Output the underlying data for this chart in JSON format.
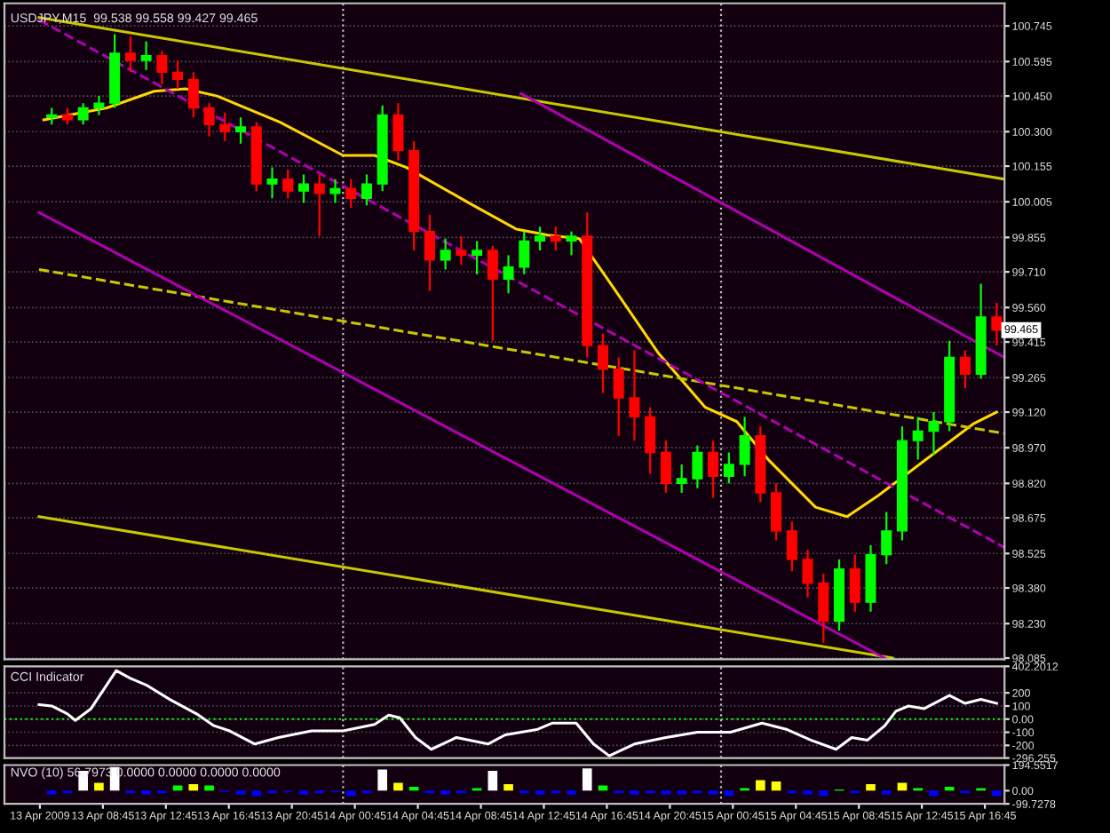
{
  "chart_data": [
    {
      "type": "candlestick",
      "title": "USDJPY,M15  99.538 99.558 99.427 99.465",
      "x": [
        "2009-04-13T05:30",
        "2009-04-13T06:30",
        "2009-04-13T07:30",
        "2009-04-13T08:30",
        "2009-04-13T09:30",
        "2009-04-13T10:30",
        "2009-04-13T11:30",
        "2009-04-13T12:30",
        "2009-04-13T13:30",
        "2009-04-13T14:30",
        "2009-04-13T15:30",
        "2009-04-13T16:30",
        "2009-04-13T17:30",
        "2009-04-13T18:30",
        "2009-04-13T19:30",
        "2009-04-13T20:30",
        "2009-04-13T21:30",
        "2009-04-13T22:30",
        "2009-04-13T23:30",
        "2009-04-14T00:30",
        "2009-04-14T01:30",
        "2009-04-14T02:30",
        "2009-04-14T03:30",
        "2009-04-14T04:30",
        "2009-04-14T05:30",
        "2009-04-14T06:30",
        "2009-04-14T07:30",
        "2009-04-14T08:30",
        "2009-04-14T09:30",
        "2009-04-14T10:30",
        "2009-04-14T11:30",
        "2009-04-14T12:30",
        "2009-04-14T13:30",
        "2009-04-14T14:30",
        "2009-04-14T15:30",
        "2009-04-14T16:30",
        "2009-04-14T17:30",
        "2009-04-14T18:30",
        "2009-04-14T19:30",
        "2009-04-14T20:30",
        "2009-04-14T21:30",
        "2009-04-14T22:30",
        "2009-04-14T23:30",
        "2009-04-15T00:30",
        "2009-04-15T01:30",
        "2009-04-15T02:30",
        "2009-04-15T03:30",
        "2009-04-15T04:30",
        "2009-04-15T05:30",
        "2009-04-15T06:30",
        "2009-04-15T07:30",
        "2009-04-15T08:30",
        "2009-04-15T09:30",
        "2009-04-15T10:30",
        "2009-04-15T11:30",
        "2009-04-15T12:30",
        "2009-04-15T13:30",
        "2009-04-15T14:30",
        "2009-04-15T15:30",
        "2009-04-15T16:30",
        "2009-04-15T17:30"
      ],
      "ohlc": [
        [
          100.36,
          100.4,
          100.33,
          100.37
        ],
        [
          100.37,
          100.4,
          100.33,
          100.35
        ],
        [
          100.35,
          100.42,
          100.33,
          100.4
        ],
        [
          100.4,
          100.45,
          100.37,
          100.42
        ],
        [
          100.42,
          100.71,
          100.4,
          100.63
        ],
        [
          100.63,
          100.7,
          100.55,
          100.6
        ],
        [
          100.6,
          100.68,
          100.56,
          100.62
        ],
        [
          100.62,
          100.64,
          100.5,
          100.55
        ],
        [
          100.55,
          100.6,
          100.48,
          100.52
        ],
        [
          100.52,
          100.55,
          100.36,
          100.4
        ],
        [
          100.4,
          100.42,
          100.28,
          100.33
        ],
        [
          100.33,
          100.38,
          100.26,
          100.3
        ],
        [
          100.3,
          100.36,
          100.25,
          100.32
        ],
        [
          100.32,
          100.34,
          100.05,
          100.08
        ],
        [
          100.08,
          100.15,
          100.02,
          100.1
        ],
        [
          100.1,
          100.14,
          100.02,
          100.05
        ],
        [
          100.05,
          100.12,
          100.0,
          100.08
        ],
        [
          100.08,
          100.12,
          99.86,
          100.04
        ],
        [
          100.04,
          100.1,
          100.0,
          100.06
        ],
        [
          100.06,
          100.1,
          99.98,
          100.02
        ],
        [
          100.02,
          100.12,
          99.99,
          100.08
        ],
        [
          100.08,
          100.41,
          100.05,
          100.37
        ],
        [
          100.37,
          100.42,
          100.18,
          100.22
        ],
        [
          100.22,
          100.26,
          99.8,
          99.88
        ],
        [
          99.88,
          99.95,
          99.63,
          99.76
        ],
        [
          99.76,
          99.85,
          99.72,
          99.8
        ],
        [
          99.8,
          99.86,
          99.74,
          99.78
        ],
        [
          99.78,
          99.84,
          99.7,
          99.8
        ],
        [
          99.8,
          99.82,
          99.42,
          99.68
        ],
        [
          99.68,
          99.78,
          99.62,
          99.73
        ],
        [
          99.73,
          99.88,
          99.7,
          99.84
        ],
        [
          99.84,
          99.9,
          99.8,
          99.86
        ],
        [
          99.86,
          99.9,
          99.8,
          99.84
        ],
        [
          99.84,
          99.88,
          99.78,
          99.86
        ],
        [
          99.86,
          99.96,
          99.35,
          99.4
        ],
        [
          99.4,
          99.45,
          99.2,
          99.3
        ],
        [
          99.3,
          99.35,
          99.02,
          99.18
        ],
        [
          99.18,
          99.38,
          99.0,
          99.1
        ],
        [
          99.1,
          99.14,
          98.86,
          98.95
        ],
        [
          98.95,
          99.0,
          98.78,
          98.82
        ],
        [
          98.82,
          98.9,
          98.78,
          98.84
        ],
        [
          98.84,
          98.98,
          98.8,
          98.95
        ],
        [
          98.95,
          99.0,
          98.76,
          98.85
        ],
        [
          98.85,
          98.95,
          98.82,
          98.9
        ],
        [
          98.9,
          99.1,
          98.85,
          99.02
        ],
        [
          99.02,
          99.06,
          98.74,
          98.78
        ],
        [
          98.78,
          98.82,
          98.58,
          98.62
        ],
        [
          98.62,
          98.66,
          98.45,
          98.5
        ],
        [
          98.5,
          98.54,
          98.34,
          98.4
        ],
        [
          98.4,
          98.44,
          98.15,
          98.24
        ],
        [
          98.24,
          98.5,
          98.2,
          98.46
        ],
        [
          98.46,
          98.52,
          98.28,
          98.32
        ],
        [
          98.32,
          98.56,
          98.28,
          98.52
        ],
        [
          98.52,
          98.7,
          98.48,
          98.62
        ],
        [
          98.62,
          99.06,
          98.58,
          99.0
        ],
        [
          99.0,
          99.1,
          98.92,
          99.04
        ],
        [
          99.04,
          99.12,
          98.94,
          99.08
        ],
        [
          99.08,
          99.42,
          99.04,
          99.35
        ],
        [
          99.35,
          99.38,
          99.22,
          99.28
        ],
        [
          99.28,
          99.66,
          99.26,
          99.52
        ],
        [
          99.52,
          99.58,
          99.4,
          99.465
        ]
      ],
      "colors": [
        "#00ff00",
        "#ff0000",
        "#00ff00",
        "#00ff00",
        "#00ff00",
        "#ff0000",
        "#00ff00",
        "#ff0000",
        "#ff0000",
        "#ff0000",
        "#ff0000",
        "#ff0000",
        "#00ff00",
        "#ff0000",
        "#00ff00",
        "#ff0000",
        "#00ff00",
        "#ff0000",
        "#00ff00",
        "#ff0000",
        "#00ff00",
        "#00ff00",
        "#ff0000",
        "#ff0000",
        "#ff0000",
        "#00ff00",
        "#ff0000",
        "#00ff00",
        "#ff0000",
        "#00ff00",
        "#00ff00",
        "#00ff00",
        "#ff0000",
        "#00ff00",
        "#ff0000",
        "#ff0000",
        "#ff0000",
        "#ff0000",
        "#ff0000",
        "#ff0000",
        "#00ff00",
        "#00ff00",
        "#ff0000",
        "#00ff00",
        "#00ff00",
        "#ff0000",
        "#ff0000",
        "#ff0000",
        "#ff0000",
        "#ff0000",
        "#00ff00",
        "#ff0000",
        "#00ff00",
        "#00ff00",
        "#00ff00",
        "#00ff00",
        "#00ff00",
        "#00ff00",
        "#ff0000",
        "#00ff00",
        "#ff0000"
      ],
      "series": [
        {
          "type": "line",
          "color": "#ffd700",
          "line_style": "solid",
          "x": [
            "2009-04-13T05:00",
            "2009-04-13T09:00",
            "2009-04-13T12:00",
            "2009-04-13T14:00",
            "2009-04-13T16:00",
            "2009-04-13T20:00",
            "2009-04-14T00:00",
            "2009-04-14T02:00",
            "2009-04-14T04:00",
            "2009-04-14T08:00",
            "2009-04-14T11:00",
            "2009-04-14T13:00",
            "2009-04-14T15:00",
            "2009-04-14T17:00",
            "2009-04-14T20:00",
            "2009-04-14T23:00",
            "2009-04-15T01:00",
            "2009-04-15T03:00",
            "2009-04-15T06:00",
            "2009-04-15T08:00",
            "2009-04-15T10:00",
            "2009-04-15T13:00",
            "2009-04-15T16:00",
            "2009-04-15T17:30"
          ],
          "values": [
            100.35,
            100.4,
            100.47,
            100.48,
            100.45,
            100.34,
            100.2,
            100.2,
            100.15,
            100.0,
            99.89,
            99.865,
            99.85,
            99.66,
            99.37,
            99.14,
            99.08,
            98.92,
            98.72,
            98.68,
            98.77,
            98.92,
            99.07,
            99.12
          ]
        },
        {
          "type": "line",
          "color": "#c8c800",
          "line_style": "solid",
          "x": [
            "2009-04-13T04:42",
            "2009-04-15T18:00"
          ],
          "values": [
            100.78,
            100.1
          ]
        },
        {
          "type": "line",
          "color": "#c8c800",
          "line_style": "solid",
          "x": [
            "2009-04-13T04:42",
            "2009-04-15T10:54"
          ],
          "values": [
            98.68,
            98.085
          ]
        },
        {
          "type": "line",
          "color": "#c8c800",
          "line_style": "dashed",
          "x": [
            "2009-04-13T04:42",
            "2009-04-15T18:00"
          ],
          "values": [
            99.72,
            99.03
          ]
        },
        {
          "type": "line",
          "color": "#b000b0",
          "line_style": "solid",
          "x": [
            "2009-04-14T11:18",
            "2009-04-15T18:00"
          ],
          "values": [
            100.46,
            99.35
          ]
        },
        {
          "type": "line",
          "color": "#b000b0",
          "line_style": "dashed",
          "x": [
            "2009-04-13T04:42",
            "2009-04-15T18:00"
          ],
          "values": [
            100.77,
            98.55
          ]
        },
        {
          "type": "line",
          "color": "#b000b0",
          "line_style": "solid",
          "x": [
            "2009-04-13T04:42",
            "2009-04-15T10:24"
          ],
          "values": [
            99.96,
            98.085
          ]
        }
      ],
      "xlim": [
        "2009-04-13T02:30",
        "2009-04-15T18:00"
      ],
      "ylim": [
        98.08,
        100.84
      ],
      "yticks": [
        100.745,
        100.595,
        {
          "value": 100.45,
          "label": "100.450"
        },
        {
          "value": 100.3,
          "label": "100.300"
        },
        100.155,
        100.005,
        99.855,
        {
          "value": 99.71,
          "label": "99.710"
        },
        {
          "value": 99.56,
          "label": "99.560"
        },
        99.415,
        99.265,
        {
          "value": 99.12,
          "label": "99.120"
        },
        {
          "value": 98.97,
          "label": "98.970"
        },
        {
          "value": 98.82,
          "label": "98.820"
        },
        98.675,
        98.525,
        {
          "value": 98.38,
          "label": "98.380"
        },
        {
          "value": 98.23,
          "label": "98.230"
        },
        98.085
      ],
      "annotations": [
        {
          "text": "99.465",
          "x": "2009-04-15T17:30",
          "y": 99.465
        }
      ],
      "ref_lines": [
        {
          "axis": "x",
          "value": "2009-04-14T00:00",
          "color": "#c0c0c0",
          "line_style": "dotted"
        },
        {
          "axis": "x",
          "value": "2009-04-15T00:00",
          "color": "#c0c0c0",
          "line_style": "dotted"
        }
      ],
      "grid": true,
      "tick_labels": "y"
    },
    {
      "type": "line",
      "title": "CCI Indicator",
      "series": [
        {
          "type": "line",
          "color": "#ffffff",
          "x": [
            "2009-04-13T04:42",
            "2009-04-13T05:30",
            "2009-04-13T06:30",
            "2009-04-13T07:00",
            "2009-04-13T08:00",
            "2009-04-13T09:36",
            "2009-04-13T10:30",
            "2009-04-13T11:30",
            "2009-04-13T13:00",
            "2009-04-13T14:42",
            "2009-04-13T15:48",
            "2009-04-13T16:48",
            "2009-04-13T18:24",
            "2009-04-13T19:54",
            "2009-04-13T22:00",
            "2009-04-14T00:00",
            "2009-04-14T02:00",
            "2009-04-14T02:54",
            "2009-04-14T03:36",
            "2009-04-14T04:36",
            "2009-04-14T05:36",
            "2009-04-14T07:12",
            "2009-04-14T09:12",
            "2009-04-14T10:18",
            "2009-04-14T12:18",
            "2009-04-14T13:18",
            "2009-04-14T14:48",
            "2009-04-14T15:54",
            "2009-04-14T16:54",
            "2009-04-14T18:30",
            "2009-04-14T20:30",
            "2009-04-14T22:30",
            "2009-04-15T00:36",
            "2009-04-15T02:36",
            "2009-04-15T04:12",
            "2009-04-15T05:42",
            "2009-04-15T07:18",
            "2009-04-15T08:18",
            "2009-04-15T09:18",
            "2009-04-15T10:24",
            "2009-04-15T11:06",
            "2009-04-15T11:54",
            "2009-04-15T12:54",
            "2009-04-15T14:30",
            "2009-04-15T15:30",
            "2009-04-15T16:30",
            "2009-04-15T17:30"
          ],
          "values": [
            110,
            100,
            40,
            -10,
            80,
            370,
            310,
            260,
            150,
            40,
            -50,
            -90,
            -190,
            -140,
            -90,
            -90,
            -40,
            30,
            10,
            -140,
            -230,
            -140,
            -190,
            -120,
            -80,
            -30,
            -30,
            -190,
            -280,
            -190,
            -140,
            -100,
            -100,
            -30,
            -80,
            -160,
            -230,
            -140,
            -160,
            -50,
            60,
            100,
            80,
            180,
            120,
            150,
            120
          ]
        }
      ],
      "xlim": [
        "2009-04-13T02:30",
        "2009-04-15T18:00"
      ],
      "ylim": [
        -296.255,
        402.2012
      ],
      "yticks": [
        402.2012,
        200,
        100,
        {
          "value": 0,
          "label": "0.00"
        },
        -100,
        -200,
        -296.255
      ],
      "ref_lines": [
        {
          "axis": "y",
          "value": 0,
          "color": "#00ff00",
          "line_style": "dotted"
        },
        {
          "axis": "x",
          "value": "2009-04-14T00:00",
          "color": "#c0c0c0",
          "line_style": "dotted"
        },
        {
          "axis": "x",
          "value": "2009-04-15T00:00",
          "color": "#c0c0c0",
          "line_style": "dotted"
        }
      ],
      "grid": "y",
      "tick_labels": "y"
    },
    {
      "type": "bar",
      "title": "NVO (10) 56.7973 0.0000 0.0000 0.0000 0.0000",
      "x": [
        "2009-04-13T05:30",
        "2009-04-13T06:30",
        "2009-04-13T07:30",
        "2009-04-13T08:30",
        "2009-04-13T09:30",
        "2009-04-13T10:30",
        "2009-04-13T11:30",
        "2009-04-13T12:30",
        "2009-04-13T13:30",
        "2009-04-13T14:30",
        "2009-04-13T15:30",
        "2009-04-13T16:30",
        "2009-04-13T17:30",
        "2009-04-13T18:30",
        "2009-04-13T19:30",
        "2009-04-13T20:30",
        "2009-04-13T21:30",
        "2009-04-13T22:30",
        "2009-04-13T23:30",
        "2009-04-14T00:30",
        "2009-04-14T01:30",
        "2009-04-14T02:30",
        "2009-04-14T03:30",
        "2009-04-14T04:30",
        "2009-04-14T05:30",
        "2009-04-14T06:30",
        "2009-04-14T07:30",
        "2009-04-14T08:30",
        "2009-04-14T09:30",
        "2009-04-14T10:30",
        "2009-04-14T11:30",
        "2009-04-14T12:30",
        "2009-04-14T13:30",
        "2009-04-14T14:30",
        "2009-04-14T15:30",
        "2009-04-14T16:30",
        "2009-04-14T17:30",
        "2009-04-14T18:30",
        "2009-04-14T19:30",
        "2009-04-14T20:30",
        "2009-04-14T21:30",
        "2009-04-14T22:30",
        "2009-04-14T23:30",
        "2009-04-15T00:30",
        "2009-04-15T01:30",
        "2009-04-15T02:30",
        "2009-04-15T03:30",
        "2009-04-15T04:30",
        "2009-04-15T05:30",
        "2009-04-15T06:30",
        "2009-04-15T07:30",
        "2009-04-15T08:30",
        "2009-04-15T09:30",
        "2009-04-15T10:30",
        "2009-04-15T11:30",
        "2009-04-15T12:30",
        "2009-04-15T13:30",
        "2009-04-15T14:30",
        "2009-04-15T15:30",
        "2009-04-15T16:30",
        "2009-04-15T17:30"
      ],
      "values": [
        -30,
        -20,
        150,
        60,
        180,
        -20,
        -30,
        -20,
        40,
        50,
        40,
        -10,
        -30,
        -40,
        -20,
        -10,
        -30,
        -20,
        -10,
        -40,
        -20,
        160,
        60,
        30,
        -20,
        -30,
        -20,
        20,
        150,
        50,
        -20,
        -30,
        -20,
        -30,
        170,
        40,
        -20,
        -30,
        -20,
        -30,
        -30,
        -20,
        -30,
        -40,
        20,
        80,
        70,
        -20,
        -30,
        -40,
        10,
        -20,
        50,
        -30,
        60,
        20,
        -40,
        30,
        -20,
        20,
        -40
      ],
      "colors": [
        "#0000ff",
        "#0000ff",
        "#ffffff",
        "#ffff00",
        "#ffffff",
        "#0000ff",
        "#0000ff",
        "#0000ff",
        "#00ff00",
        "#ffff00",
        "#00ff00",
        "#0000ff",
        "#0000ff",
        "#0000ff",
        "#0000ff",
        "#0000ff",
        "#0000ff",
        "#0000ff",
        "#0000ff",
        "#0000ff",
        "#0000ff",
        "#ffffff",
        "#ffff00",
        "#00ff00",
        "#0000ff",
        "#0000ff",
        "#0000ff",
        "#00ff00",
        "#ffffff",
        "#ffff00",
        "#0000ff",
        "#0000ff",
        "#0000ff",
        "#0000ff",
        "#ffffff",
        "#00ff00",
        "#0000ff",
        "#0000ff",
        "#0000ff",
        "#0000ff",
        "#0000ff",
        "#0000ff",
        "#0000ff",
        "#0000ff",
        "#00ff00",
        "#ffff00",
        "#ffff00",
        "#0000ff",
        "#0000ff",
        "#0000ff",
        "#00ff00",
        "#0000ff",
        "#ffff00",
        "#0000ff",
        "#ffff00",
        "#00ff00",
        "#0000ff",
        "#00ff00",
        "#0000ff",
        "#00ff00",
        "#0000ff"
      ],
      "xlim": [
        "2009-04-13T02:30",
        "2009-04-15T18:00"
      ],
      "ylim": [
        -99.7278,
        194.5517
      ],
      "yticks": [
        194.5517,
        {
          "value": 0,
          "label": "0.00"
        },
        -99.7278
      ],
      "xticks": [
        {
          "value": "2009-04-13T04:45",
          "label": "13 Apr 2009"
        },
        {
          "value": "2009-04-13T08:45",
          "label": "13 Apr 08:45"
        },
        {
          "value": "2009-04-13T12:45",
          "label": "13 Apr 12:45"
        },
        {
          "value": "2009-04-13T16:45",
          "label": "13 Apr 16:45"
        },
        {
          "value": "2009-04-13T20:45",
          "label": "13 Apr 20:45"
        },
        {
          "value": "2009-04-14T00:45",
          "label": "14 Apr 00:45"
        },
        {
          "value": "2009-04-14T04:45",
          "label": "14 Apr 04:45"
        },
        {
          "value": "2009-04-14T08:45",
          "label": "14 Apr 08:45"
        },
        {
          "value": "2009-04-14T12:45",
          "label": "14 Apr 12:45"
        },
        {
          "value": "2009-04-14T16:45",
          "label": "14 Apr 16:45"
        },
        {
          "value": "2009-04-14T20:45",
          "label": "14 Apr 20:45"
        },
        {
          "value": "2009-04-15T00:45",
          "label": "15 Apr 00:45"
        },
        {
          "value": "2009-04-15T04:45",
          "label": "15 Apr 04:45"
        },
        {
          "value": "2009-04-15T08:45",
          "label": "15 Apr 08:45"
        },
        {
          "value": "2009-04-15T12:45",
          "label": "15 Apr 12:45"
        },
        {
          "value": "2009-04-15T16:45",
          "label": "15 Apr 16:45"
        }
      ],
      "ref_lines": [
        {
          "axis": "x",
          "value": "2009-04-14T00:00",
          "color": "#c0c0c0",
          "line_style": "dotted"
        },
        {
          "axis": "x",
          "value": "2009-04-15T00:00",
          "color": "#c0c0c0",
          "line_style": "dotted"
        }
      ],
      "grid": false
    }
  ]
}
